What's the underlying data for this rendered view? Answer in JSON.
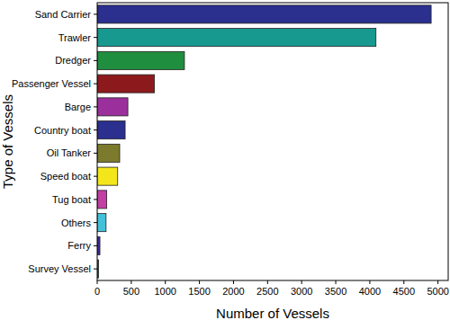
{
  "chart_data": {
    "type": "bar",
    "orientation": "horizontal",
    "xlabel": "Number of Vessels",
    "ylabel": "Type of Vessels",
    "categories": [
      "Sand Carrier",
      "Trawler",
      "Dredger",
      "Passenger Vessel",
      "Barge",
      "Country boat",
      "Oil Tanker",
      "Speed boat",
      "Tug boat",
      "Others",
      "Ferry",
      "Survey Vessel"
    ],
    "values": [
      4900,
      4090,
      1280,
      840,
      450,
      410,
      330,
      300,
      140,
      130,
      40,
      20
    ],
    "colors": [
      "#2b2f8e",
      "#17998f",
      "#1f8e3e",
      "#8c1a1d",
      "#9b2f9b",
      "#2b2f8e",
      "#7c7a2c",
      "#f3e71c",
      "#c23fa3",
      "#43c1da",
      "#3a2c9e",
      "#2a8a4c"
    ],
    "xlim": [
      0,
      5150
    ],
    "xticks": [
      0,
      500,
      1000,
      1500,
      2000,
      2500,
      3000,
      3500,
      4000,
      4500,
      5000
    ],
    "grid": false
  }
}
